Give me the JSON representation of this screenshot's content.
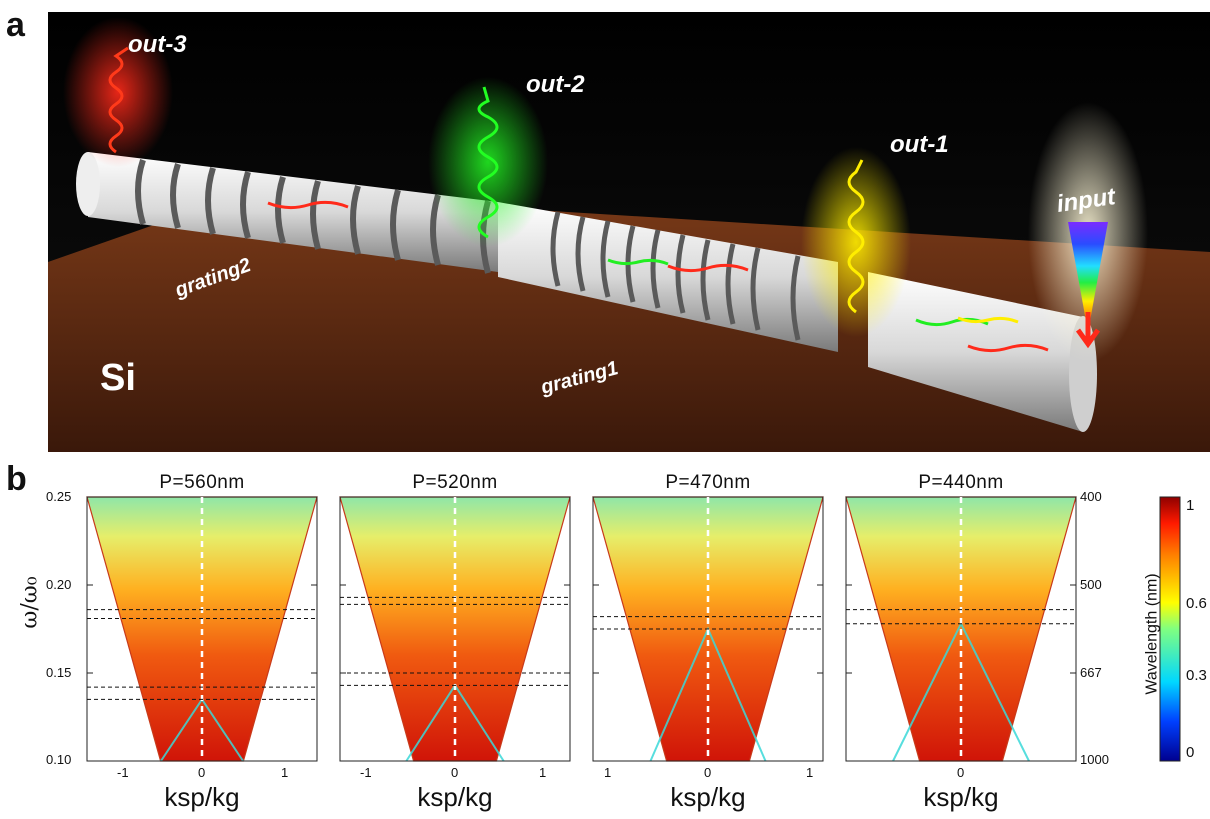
{
  "panel_a": {
    "label": "a",
    "texts": {
      "out3": "out-3",
      "out2": "out-2",
      "out1": "out-1",
      "input": "input",
      "grating2": "grating2",
      "grating1": "grating1",
      "si": "Si"
    },
    "colors": {
      "background": "#050505",
      "substrate": "#5a2a12",
      "rod": "#e6e6e6",
      "red": "#ff2a1a",
      "green": "#22ee22",
      "yellow": "#ffee00"
    }
  },
  "panel_b": {
    "label": "b",
    "y_axis_label": "ω/ω₀",
    "y_ticks": [
      "0.25",
      "0.20",
      "0.15",
      "0.10"
    ],
    "right_ticks": [
      "400",
      "500",
      "667",
      "1000"
    ],
    "right_axis_label": "Wavelength (nm)",
    "x_axis_label": "ksp/kg",
    "colorbar": {
      "ticks": [
        "1",
        "0.6",
        "0.3",
        "0"
      ]
    },
    "plots": [
      {
        "title": "P=560nm",
        "x_ticks": [
          "-1",
          "0",
          "1"
        ]
      },
      {
        "title": "P=520nm",
        "x_ticks": [
          "-1",
          "0",
          "1"
        ]
      },
      {
        "title": "P=470nm",
        "x_ticks": [
          "1",
          "0",
          "1"
        ]
      },
      {
        "title": "P=440nm",
        "x_ticks": [
          "0"
        ]
      }
    ]
  },
  "chart_data": [
    {
      "type": "heatmap",
      "title": "P=560nm",
      "xlabel": "ksp/kg",
      "ylabel": "ω/ω₀",
      "ylim": [
        0.1,
        0.25
      ],
      "xlim": [
        -1.4,
        1.4
      ],
      "zlim": [
        0,
        1
      ],
      "dashed_lines_y": [
        0.186,
        0.181,
        0.142,
        0.135
      ]
    },
    {
      "type": "heatmap",
      "title": "P=520nm",
      "xlabel": "ksp/kg",
      "ylabel": "ω/ω₀",
      "ylim": [
        0.1,
        0.25
      ],
      "xlim": [
        -1.3,
        1.3
      ],
      "zlim": [
        0,
        1
      ],
      "dashed_lines_y": [
        0.193,
        0.189,
        0.15,
        0.143
      ]
    },
    {
      "type": "heatmap",
      "title": "P=470nm",
      "xlabel": "ksp/kg",
      "ylabel": "ω/ω₀",
      "ylim": [
        0.1,
        0.25
      ],
      "xlim": [
        -1.2,
        1.2
      ],
      "zlim": [
        0,
        1
      ],
      "dashed_lines_y": [
        0.182,
        0.175
      ]
    },
    {
      "type": "heatmap",
      "title": "P=440nm",
      "xlabel": "ksp/kg",
      "ylabel": "ω/ω₀",
      "ylim": [
        0.1,
        0.25
      ],
      "xlim": [
        -1.1,
        1.1
      ],
      "zlim": [
        0,
        1
      ],
      "dashed_lines_y": [
        0.186,
        0.178
      ]
    }
  ]
}
